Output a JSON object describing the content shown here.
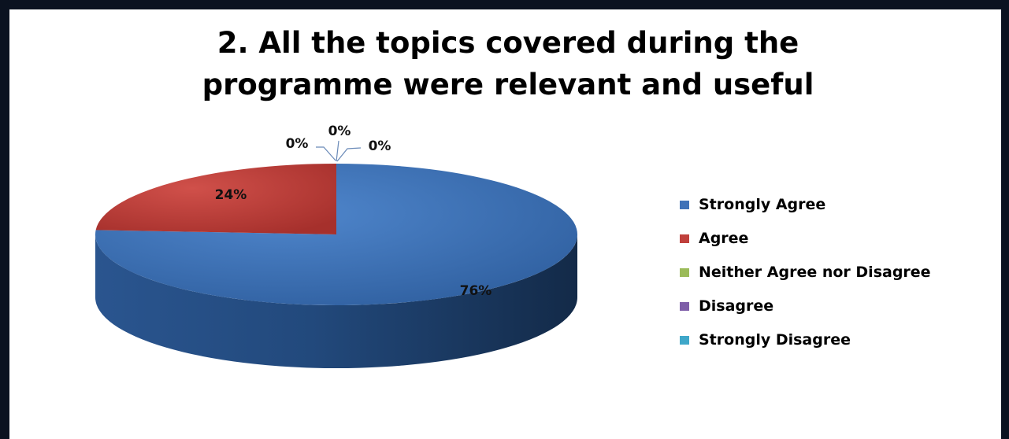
{
  "chart_data": {
    "type": "pie",
    "title_lines": [
      "2. All the topics covered during the",
      "programme were relevant and useful"
    ],
    "series": [
      {
        "name": "Strongly Agree",
        "value": 76,
        "label": "76%",
        "color": "#3f72b8"
      },
      {
        "name": "Agree",
        "value": 24,
        "label": "24%",
        "color": "#c0403c"
      },
      {
        "name": "Neither Agree nor Disagree",
        "value": 0,
        "label": "0%",
        "color": "#9bbb59"
      },
      {
        "name": "Disagree",
        "value": 0,
        "label": "0%",
        "color": "#7e5ea8"
      },
      {
        "name": "Strongly Disagree",
        "value": 0,
        "label": "0%",
        "color": "#3fa7c9"
      }
    ],
    "legend_position": "right",
    "three_d": true
  }
}
